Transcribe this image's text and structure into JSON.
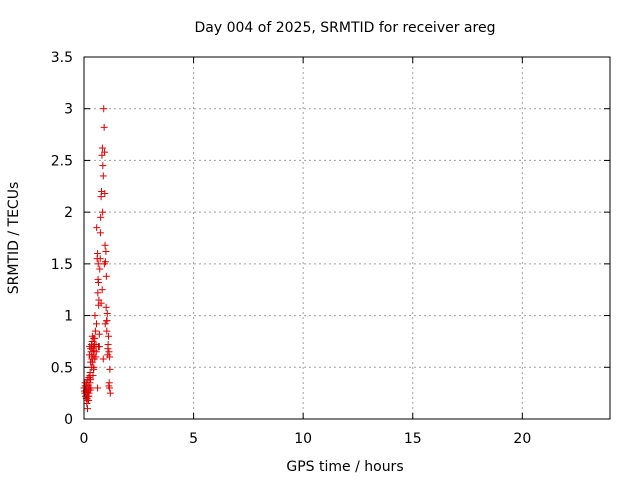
{
  "chart_data": {
    "type": "scatter",
    "title": "Day 004 of 2025, SRMTID for receiver areg",
    "xlabel": "GPS time / hours",
    "ylabel": "SRMTID / TECUs",
    "xlim": [
      0,
      24
    ],
    "ylim": [
      0,
      3.5
    ],
    "xticks": [
      0,
      5,
      10,
      15,
      20
    ],
    "xtick_labels": [
      "0",
      "5",
      "10",
      "15",
      "20"
    ],
    "yticks": [
      0,
      0.5,
      1,
      1.5,
      2,
      2.5,
      3,
      3.5
    ],
    "ytick_labels": [
      "0",
      "0.5",
      "1",
      "1.5",
      "2",
      "2.5",
      "3",
      "3.5"
    ],
    "grid": true,
    "marker": "+",
    "color": "#e00000",
    "series": [
      {
        "name": "areg",
        "x": [
          0.0,
          0.02,
          0.04,
          0.05,
          0.07,
          0.08,
          0.1,
          0.11,
          0.12,
          0.13,
          0.14,
          0.15,
          0.16,
          0.17,
          0.18,
          0.19,
          0.2,
          0.21,
          0.22,
          0.23,
          0.24,
          0.25,
          0.26,
          0.27,
          0.28,
          0.29,
          0.3,
          0.31,
          0.32,
          0.33,
          0.34,
          0.35,
          0.36,
          0.37,
          0.38,
          0.39,
          0.4,
          0.41,
          0.42,
          0.43,
          0.44,
          0.45,
          0.46,
          0.47,
          0.48,
          0.5,
          0.52,
          0.54,
          0.55,
          0.56,
          0.58,
          0.6,
          0.62,
          0.63,
          0.64,
          0.65,
          0.66,
          0.67,
          0.68,
          0.7,
          0.72,
          0.74,
          0.75,
          0.76,
          0.78,
          0.8,
          0.82,
          0.84,
          0.85,
          0.86,
          0.88,
          0.9,
          0.92,
          0.94,
          0.95,
          0.96,
          0.98,
          1.0,
          1.02,
          1.04,
          1.05,
          1.06,
          1.08,
          1.1,
          1.12,
          1.14,
          1.15,
          1.16,
          1.18,
          1.2,
          0.14,
          0.22,
          0.3,
          0.44,
          0.62,
          0.7,
          0.78,
          0.88,
          0.97,
          1.01,
          1.09,
          1.17,
          0.05,
          0.12,
          0.19,
          0.27,
          0.36,
          0.49,
          0.57,
          0.66,
          0.83,
          0.93,
          1.03,
          1.13
        ],
        "y": [
          0.3,
          0.27,
          0.25,
          0.32,
          0.22,
          0.3,
          0.2,
          0.28,
          0.35,
          0.15,
          0.25,
          0.38,
          0.1,
          0.3,
          0.22,
          0.33,
          0.28,
          0.18,
          0.4,
          0.25,
          0.3,
          0.62,
          0.7,
          0.35,
          0.45,
          0.28,
          0.55,
          0.68,
          0.3,
          0.65,
          0.72,
          0.5,
          0.6,
          0.75,
          0.8,
          0.55,
          0.68,
          0.42,
          0.62,
          0.7,
          0.78,
          0.5,
          0.66,
          0.58,
          0.72,
          1.0,
          0.85,
          0.6,
          0.72,
          0.65,
          1.85,
          1.55,
          1.6,
          1.22,
          1.35,
          1.5,
          1.32,
          1.1,
          1.15,
          0.7,
          1.45,
          1.55,
          1.8,
          1.95,
          2.15,
          2.2,
          2.55,
          2.62,
          2.0,
          2.45,
          2.35,
          3.0,
          2.82,
          2.58,
          2.18,
          1.68,
          1.52,
          1.62,
          1.38,
          0.85,
          0.95,
          1.02,
          0.62,
          0.72,
          0.8,
          0.65,
          0.35,
          0.3,
          0.48,
          0.25,
          0.2,
          0.22,
          0.38,
          0.48,
          0.3,
          0.82,
          1.12,
          0.58,
          0.92,
          1.08,
          0.68,
          0.6,
          0.35,
          0.26,
          0.18,
          0.42,
          0.58,
          0.78,
          0.92,
          0.7,
          1.25,
          1.5,
          0.95,
          0.32
        ]
      }
    ]
  }
}
